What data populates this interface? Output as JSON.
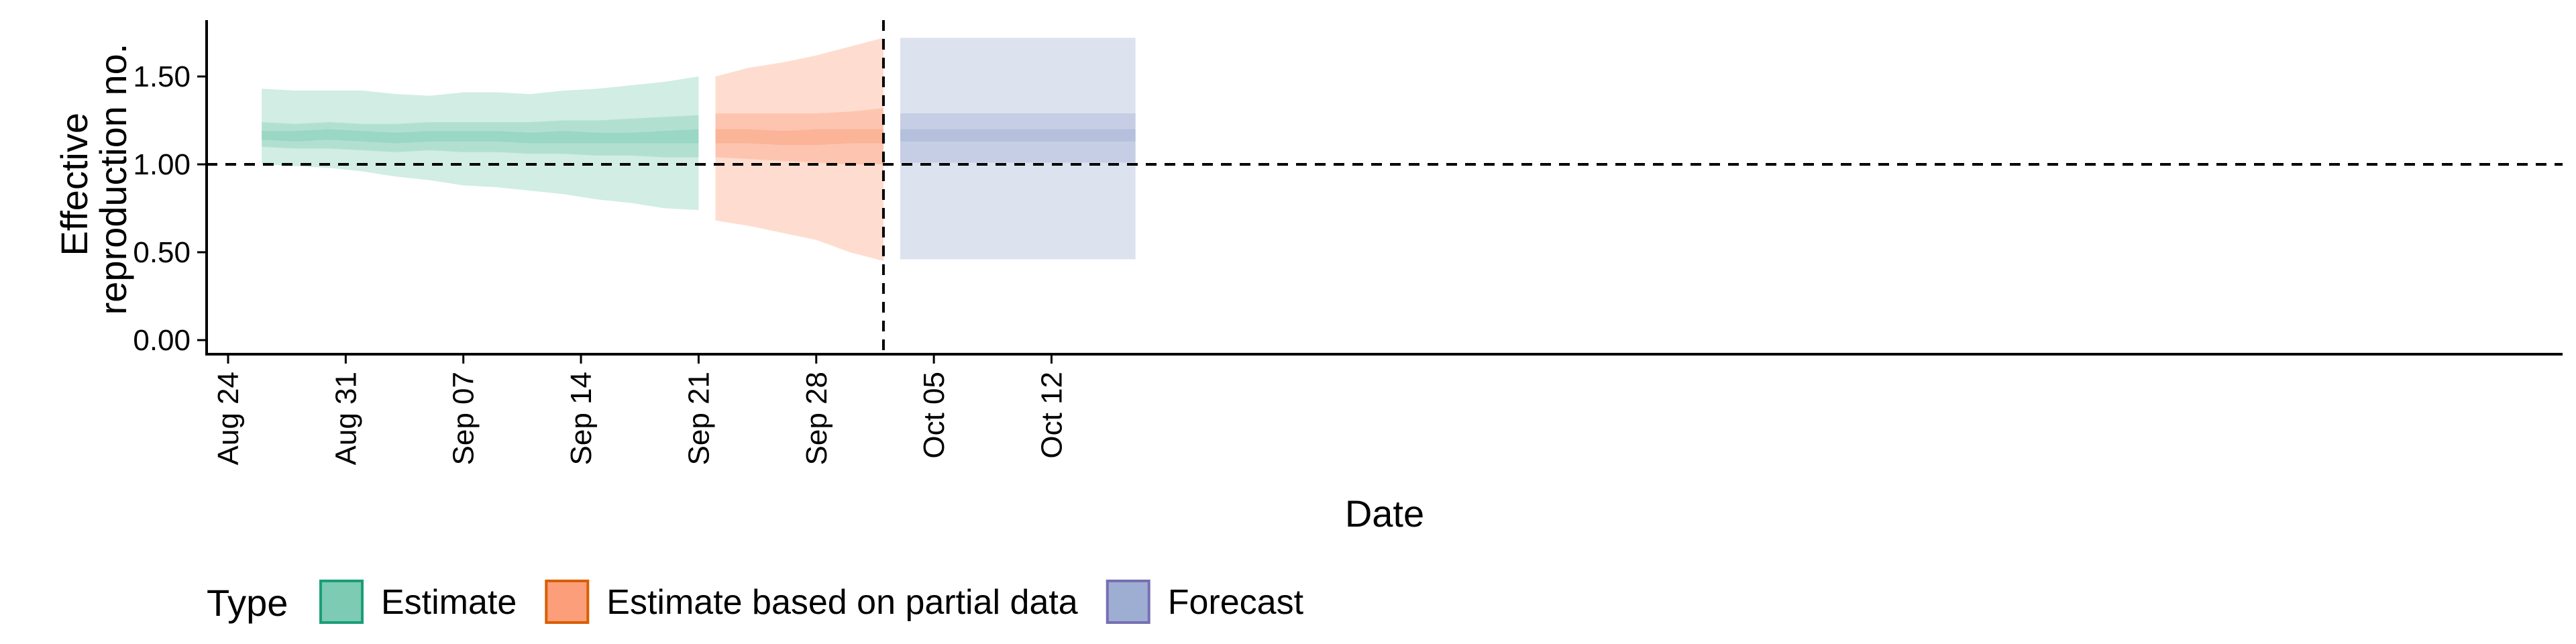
{
  "chart_data": {
    "type": "area",
    "title": "",
    "xlabel": "Date",
    "ylabel": "Effective\nreproduction no.",
    "ylim": [
      -0.05,
      1.8
    ],
    "xlim": [
      "2020-08-23",
      "2020-10-20"
    ],
    "x_ticks": [
      "2020-08-24",
      "2020-08-31",
      "2020-09-07",
      "2020-09-14",
      "2020-09-21",
      "2020-09-28",
      "2020-10-05",
      "2020-10-12"
    ],
    "x_tick_labels": [
      "Aug 24",
      "Aug 31",
      "Sep 07",
      "Sep 14",
      "Sep 21",
      "Sep 28",
      "Oct 05",
      "Oct 12"
    ],
    "y_ticks": [
      0.0,
      0.5,
      1.0,
      1.5
    ],
    "y_tick_labels": [
      "0.00",
      "0.50",
      "1.00",
      "1.50"
    ],
    "grid": false,
    "reference_lines": {
      "horizontal_y": 1.0,
      "vertical_x": "2020-10-02"
    },
    "legend": {
      "title": "Type",
      "position": "bottom-left"
    },
    "series": [
      {
        "name": "Estimate",
        "color": "#1b9e77",
        "fill": "#66c2a5",
        "x": [
          "2020-08-26",
          "2020-08-28",
          "2020-08-30",
          "2020-09-01",
          "2020-09-03",
          "2020-09-05",
          "2020-09-07",
          "2020-09-09",
          "2020-09-11",
          "2020-09-13",
          "2020-09-15",
          "2020-09-17",
          "2020-09-19",
          "2020-09-21"
        ],
        "median": [
          1.17,
          1.16,
          1.17,
          1.16,
          1.15,
          1.16,
          1.16,
          1.16,
          1.15,
          1.16,
          1.15,
          1.15,
          1.16,
          1.16
        ],
        "lower_20": [
          1.14,
          1.13,
          1.14,
          1.13,
          1.12,
          1.13,
          1.13,
          1.13,
          1.12,
          1.12,
          1.12,
          1.12,
          1.12,
          1.12
        ],
        "upper_20": [
          1.19,
          1.19,
          1.2,
          1.19,
          1.18,
          1.19,
          1.19,
          1.19,
          1.18,
          1.19,
          1.18,
          1.18,
          1.19,
          1.2
        ],
        "lower_50": [
          1.1,
          1.09,
          1.09,
          1.08,
          1.07,
          1.08,
          1.07,
          1.07,
          1.06,
          1.06,
          1.05,
          1.05,
          1.04,
          1.04
        ],
        "upper_50": [
          1.24,
          1.23,
          1.24,
          1.23,
          1.23,
          1.24,
          1.24,
          1.24,
          1.24,
          1.25,
          1.25,
          1.26,
          1.27,
          1.28
        ],
        "lower_90": [
          1.0,
          0.99,
          0.98,
          0.96,
          0.93,
          0.91,
          0.88,
          0.87,
          0.85,
          0.83,
          0.8,
          0.78,
          0.75,
          0.74
        ],
        "upper_90": [
          1.43,
          1.42,
          1.42,
          1.42,
          1.4,
          1.39,
          1.41,
          1.41,
          1.4,
          1.42,
          1.43,
          1.45,
          1.47,
          1.5
        ]
      },
      {
        "name": "Estimate based on partial data",
        "color": "#d95f02",
        "fill": "#fc8d62",
        "x": [
          "2020-09-22",
          "2020-09-24",
          "2020-09-26",
          "2020-09-28",
          "2020-09-30",
          "2020-10-02"
        ],
        "median": [
          1.16,
          1.16,
          1.15,
          1.15,
          1.16,
          1.16
        ],
        "lower_20": [
          1.12,
          1.12,
          1.11,
          1.11,
          1.12,
          1.12
        ],
        "upper_20": [
          1.2,
          1.2,
          1.19,
          1.2,
          1.2,
          1.2
        ],
        "lower_50": [
          1.04,
          1.03,
          1.02,
          1.01,
          1.0,
          1.0
        ],
        "upper_50": [
          1.29,
          1.29,
          1.29,
          1.29,
          1.3,
          1.32
        ],
        "lower_90": [
          0.68,
          0.65,
          0.61,
          0.57,
          0.5,
          0.45
        ],
        "upper_90": [
          1.5,
          1.55,
          1.58,
          1.62,
          1.67,
          1.72
        ]
      },
      {
        "name": "Forecast",
        "color": "#7570b3",
        "fill": "#8da0cb",
        "x": [
          "2020-10-03",
          "2020-10-17"
        ],
        "median": [
          1.16,
          1.16
        ],
        "lower_20": [
          1.13,
          1.13
        ],
        "upper_20": [
          1.2,
          1.2
        ],
        "lower_50": [
          1.01,
          1.01
        ],
        "upper_50": [
          1.29,
          1.29
        ],
        "lower_90": [
          0.46,
          0.46
        ],
        "upper_90": [
          1.72,
          1.72
        ]
      }
    ]
  }
}
